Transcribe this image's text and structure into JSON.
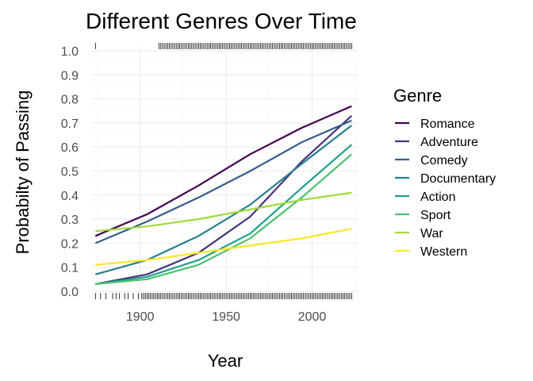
{
  "chart_data": {
    "type": "line",
    "title": "Different Genres Over Time",
    "xlabel": "Year",
    "ylabel": "Probabilty of Passing",
    "xlim": [
      1872,
      2027
    ],
    "ylim": [
      -0.02,
      1.02
    ],
    "x_ticks": [
      1900,
      1950,
      2000
    ],
    "x_tick_labels": [
      "1900",
      "1950",
      "2000"
    ],
    "y_ticks": [
      0.0,
      0.1,
      0.2,
      0.3,
      0.4,
      0.5,
      0.6,
      0.7,
      0.8,
      0.9,
      1.0
    ],
    "y_tick_labels": [
      "0.0",
      "0.1",
      "0.2",
      "0.3",
      "0.4",
      "0.5",
      "0.6",
      "0.7",
      "0.8",
      "0.9",
      "1.0"
    ],
    "grid": true,
    "legend": {
      "title": "Genre",
      "position": "right"
    },
    "x": [
      1874,
      1904,
      1934,
      1964,
      1994,
      2023
    ],
    "series": [
      {
        "name": "Romance",
        "color": "#440154",
        "values": [
          0.23,
          0.32,
          0.44,
          0.57,
          0.68,
          0.77
        ]
      },
      {
        "name": "Adventure",
        "color": "#46337e",
        "values": [
          0.03,
          0.07,
          0.16,
          0.31,
          0.54,
          0.73
        ]
      },
      {
        "name": "Comedy",
        "color": "#365c8d",
        "values": [
          0.2,
          0.29,
          0.39,
          0.5,
          0.62,
          0.71
        ]
      },
      {
        "name": "Documentary",
        "color": "#277f8e",
        "values": [
          0.07,
          0.13,
          0.23,
          0.36,
          0.53,
          0.69
        ]
      },
      {
        "name": "Action",
        "color": "#1fa187",
        "values": [
          0.03,
          0.06,
          0.13,
          0.24,
          0.43,
          0.61
        ]
      },
      {
        "name": "Sport",
        "color": "#4ac16d",
        "values": [
          0.03,
          0.05,
          0.11,
          0.22,
          0.39,
          0.57
        ]
      },
      {
        "name": "War",
        "color": "#a0da39",
        "values": [
          0.25,
          0.27,
          0.3,
          0.34,
          0.38,
          0.41
        ]
      },
      {
        "name": "Western",
        "color": "#fde725",
        "values": [
          0.11,
          0.13,
          0.16,
          0.19,
          0.22,
          0.26
        ]
      }
    ],
    "rug_top_years": [
      1874,
      1911,
      1912,
      1913,
      1914,
      1915,
      1916,
      1917,
      1918,
      1919,
      1920,
      1921,
      1922,
      1923,
      1924,
      1925,
      1926,
      1927,
      1928,
      1929,
      1930,
      1931,
      1932,
      1933,
      1934,
      1935,
      1936,
      1937,
      1938,
      1939,
      1940,
      1941,
      1942,
      1943,
      1944,
      1945,
      1946,
      1947,
      1948,
      1949,
      1950,
      1951,
      1952,
      1953,
      1954,
      1955,
      1956,
      1957,
      1958,
      1959,
      1960,
      1961,
      1962,
      1963,
      1964,
      1965,
      1966,
      1967,
      1968,
      1969,
      1970,
      1971,
      1972,
      1973,
      1974,
      1975,
      1976,
      1977,
      1978,
      1979,
      1980,
      1981,
      1982,
      1983,
      1984,
      1985,
      1986,
      1987,
      1988,
      1989,
      1990,
      1991,
      1992,
      1993,
      1994,
      1995,
      1996,
      1997,
      1998,
      1999,
      2000,
      2001,
      2002,
      2003,
      2004,
      2005,
      2006,
      2007,
      2008,
      2009,
      2010,
      2011,
      2012,
      2013,
      2014,
      2015,
      2016,
      2017,
      2018,
      2019,
      2020,
      2021,
      2022,
      2023
    ],
    "rug_bottom_years": [
      1874,
      1877,
      1880,
      1884,
      1886,
      1888,
      1891,
      1893,
      1896,
      1899,
      1901,
      1902,
      1903,
      1904,
      1905,
      1906,
      1907,
      1908,
      1909,
      1910,
      1911,
      1912,
      1913,
      1914,
      1915,
      1916,
      1917,
      1918,
      1919,
      1920,
      1921,
      1922,
      1923,
      1924,
      1925,
      1926,
      1927,
      1928,
      1929,
      1930,
      1931,
      1932,
      1933,
      1934,
      1935,
      1936,
      1937,
      1938,
      1939,
      1940,
      1941,
      1942,
      1943,
      1944,
      1945,
      1946,
      1947,
      1948,
      1949,
      1950,
      1951,
      1952,
      1953,
      1954,
      1955,
      1956,
      1957,
      1958,
      1959,
      1960,
      1961,
      1962,
      1963,
      1964,
      1965,
      1966,
      1967,
      1968,
      1969,
      1970,
      1971,
      1972,
      1973,
      1974,
      1975,
      1976,
      1977,
      1978,
      1979,
      1980,
      1981,
      1982,
      1983,
      1984,
      1985,
      1986,
      1987,
      1988,
      1989,
      1990,
      1991,
      1992,
      1993,
      1994,
      1995,
      1996,
      1997,
      1998,
      1999,
      2000,
      2001,
      2002,
      2003,
      2004,
      2005,
      2006,
      2007,
      2008,
      2009,
      2010,
      2011,
      2012,
      2013,
      2014,
      2015,
      2016,
      2017,
      2018,
      2019,
      2020,
      2021,
      2022,
      2023
    ]
  }
}
